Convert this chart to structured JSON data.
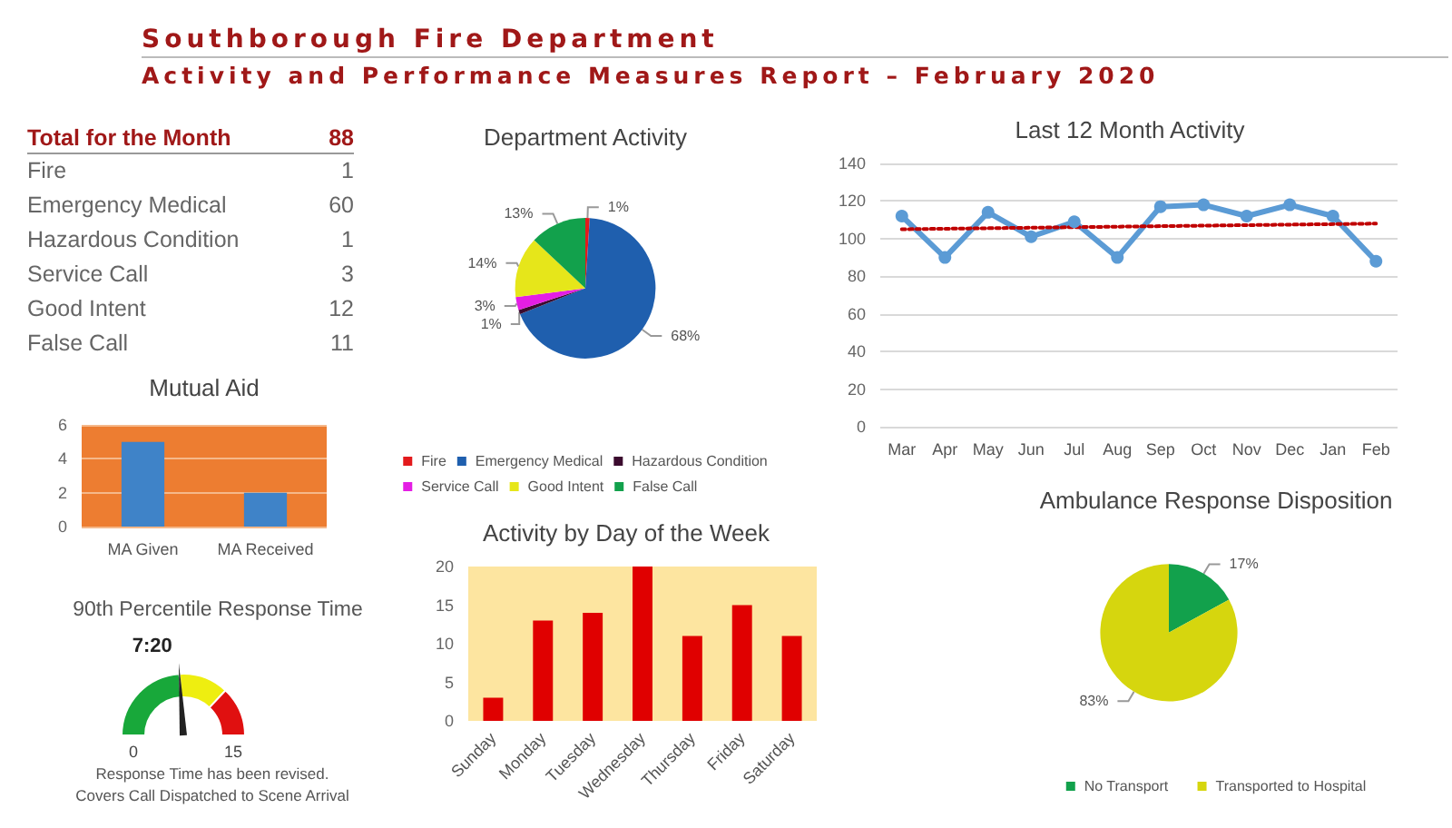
{
  "chart_data": [
    {
      "type": "other",
      "title": "Southborough Fire Department",
      "subtitle": "Activity and Performance Measures Report – February 2020"
    },
    {
      "type": "other",
      "title": "Total for the Month",
      "annotations": [
        "88"
      ],
      "categories": [
        "Fire",
        "Emergency Medical",
        "Hazardous Condition",
        "Service Call",
        "Good Intent",
        "False Call"
      ],
      "values": [
        1,
        60,
        1,
        3,
        12,
        11
      ],
      "data_labels": true
    },
    {
      "type": "pie",
      "title": "Department Activity",
      "categories": [
        "Fire",
        "Emergency Medical",
        "Hazardous Condition",
        "Service Call",
        "Good Intent",
        "False Call"
      ],
      "values": [
        1,
        68,
        1,
        3,
        14,
        13
      ],
      "value_labels": [
        "1%",
        "68%",
        "1%",
        "3%",
        "14%",
        "13%"
      ],
      "colors": [
        "#e31a1c",
        "#1f5fae",
        "#3b0b2e",
        "#e41ee4",
        "#e6e61a",
        "#12a14c"
      ],
      "legend": "bottom"
    },
    {
      "type": "line",
      "title": "Last 12 Month Activity",
      "categories": [
        "Mar",
        "Apr",
        "May",
        "Jun",
        "Jul",
        "Aug",
        "Sep",
        "Oct",
        "Nov",
        "Dec",
        "Jan",
        "Feb"
      ],
      "series": [
        {
          "color": "#5b9bd5",
          "values": [
            112,
            90,
            114,
            101,
            109,
            90,
            117,
            118,
            112,
            118,
            112,
            88
          ],
          "marker": "circle",
          "line_style": "solid"
        },
        {
          "color": "#c00000",
          "values": [
            105,
            null,
            null,
            null,
            null,
            null,
            null,
            null,
            null,
            null,
            null,
            108
          ],
          "marker": "none",
          "line_style": "dotted"
        }
      ],
      "ylim": [
        0,
        140
      ],
      "yticks": [
        0,
        20,
        40,
        60,
        80,
        100,
        120,
        140
      ],
      "grid": "y",
      "legend": false
    },
    {
      "type": "bar",
      "title": "Mutual Aid",
      "categories": [
        "MA Given",
        "MA Received"
      ],
      "values": [
        5,
        2
      ],
      "color": "#3f83c8",
      "ylim": [
        0,
        6
      ],
      "yticks": [
        0,
        2,
        4,
        6
      ],
      "grid": "y"
    },
    {
      "type": "other",
      "title": "90th Percentile Response Time",
      "colors": [
        "#18a83a",
        "#eeee10",
        "#e01010"
      ],
      "annotations": [
        "7:20",
        "0",
        "15",
        "Response Time has been revised.",
        "Covers Call Dispatched to Scene Arrival"
      ]
    },
    {
      "type": "bar",
      "title": "Activity by Day of the Week",
      "categories": [
        "Sunday",
        "Monday",
        "Tuesday",
        "Wednesday",
        "Thursday",
        "Friday",
        "Saturday"
      ],
      "values": [
        3,
        13,
        14,
        20,
        11,
        15,
        11
      ],
      "color": "#e00000",
      "ylim": [
        0,
        20
      ],
      "yticks": [
        0,
        5,
        10,
        15,
        20
      ],
      "grid": false
    },
    {
      "type": "pie",
      "title": "Ambulance Response Disposition",
      "categories": [
        "No Transport",
        "Transported to Hospital"
      ],
      "values": [
        17,
        83
      ],
      "value_labels": [
        "17%",
        "83%"
      ],
      "colors": [
        "#12a14c",
        "#d6d60e"
      ],
      "legend": "bottom"
    }
  ]
}
